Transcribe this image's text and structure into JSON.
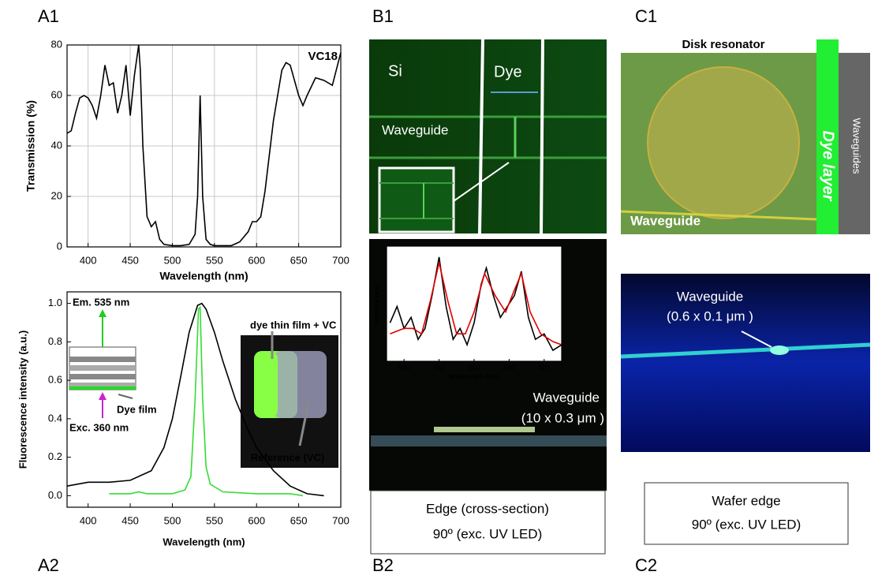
{
  "chart_data": [
    {
      "type": "line",
      "xlabel": "Wavelength (nm)",
      "ylabel": "Transmission (%)",
      "annotation": "VC18",
      "xlim": [
        375,
        700
      ],
      "xticks": [
        400,
        450,
        500,
        550,
        600,
        650,
        700
      ],
      "ylim": [
        0,
        80
      ],
      "yticks": [
        0,
        20,
        40,
        60,
        80
      ],
      "grid": true,
      "series": [
        {
          "color": "#000000",
          "x": [
            375,
            380,
            385,
            390,
            395,
            400,
            405,
            410,
            415,
            420,
            425,
            430,
            435,
            440,
            445,
            450,
            455,
            460,
            462,
            465,
            470,
            475,
            480,
            485,
            490,
            500,
            510,
            520,
            527,
            530,
            533,
            536,
            540,
            545,
            550,
            570,
            580,
            590,
            595,
            600,
            605,
            610,
            620,
            630,
            635,
            640,
            650,
            655,
            660,
            670,
            680,
            690,
            700
          ],
          "values": [
            45,
            46,
            53,
            59,
            60,
            59,
            56,
            51,
            60,
            72,
            64,
            65,
            53,
            60,
            72,
            52,
            68,
            80,
            70,
            40,
            12,
            8,
            10,
            3,
            1,
            0.5,
            0.5,
            1,
            5,
            20,
            60,
            20,
            3,
            1,
            0.5,
            0.5,
            2,
            6,
            10,
            10,
            12,
            22,
            50,
            70,
            73,
            72,
            60,
            56,
            60,
            67,
            66,
            64,
            77
          ]
        }
      ]
    },
    {
      "type": "line",
      "xlabel": "Wavelength (nm)",
      "ylabel": "Fluorescence intensity (a.u.)",
      "annotations": [
        "Em. 535 nm",
        "Dye film",
        "Exc. 360 nm",
        "dye thin film + VC",
        "Reference (VC)"
      ],
      "xlim": [
        375,
        700
      ],
      "xticks": [
        400,
        450,
        500,
        550,
        600,
        650,
        700
      ],
      "ylim": [
        -0.06,
        1.06
      ],
      "yticks": [
        {
          "value": 0,
          "label": "0.0"
        },
        0.2,
        0.4,
        0.6,
        0.8,
        {
          "value": 1,
          "label": "1.0"
        }
      ],
      "grid": false,
      "series": [
        {
          "color": "#000000",
          "x": [
            375,
            400,
            425,
            450,
            475,
            490,
            500,
            510,
            520,
            530,
            535,
            540,
            550,
            560,
            575,
            590,
            600,
            620,
            640,
            660,
            680
          ],
          "values": [
            0.05,
            0.07,
            0.07,
            0.08,
            0.13,
            0.25,
            0.4,
            0.62,
            0.85,
            0.99,
            1,
            0.97,
            0.85,
            0.7,
            0.5,
            0.34,
            0.25,
            0.13,
            0.05,
            0.01,
            0
          ]
        },
        {
          "color": "#33dd33",
          "x": [
            425,
            450,
            460,
            470,
            500,
            515,
            522,
            527,
            531,
            533,
            536,
            540,
            545,
            560,
            600,
            640,
            655
          ],
          "values": [
            0.01,
            0.01,
            0.02,
            0.01,
            0.01,
            0.03,
            0.1,
            0.5,
            0.97,
            0.98,
            0.5,
            0.15,
            0.06,
            0.02,
            0.01,
            0.01,
            0
          ]
        }
      ]
    },
    {
      "type": "line",
      "xlabel": "Wavelength (nm)",
      "ylabel": "Intensity (a.u.)",
      "xlim": [
        510,
        610
      ],
      "xticks": [
        520,
        540,
        560,
        580,
        600
      ],
      "ylim": [
        0,
        1.05
      ],
      "grid": false,
      "series": [
        {
          "color": "#000000",
          "x": [
            512,
            516,
            520,
            524,
            528,
            532,
            536,
            540,
            544,
            548,
            552,
            556,
            560,
            564,
            567,
            571,
            575,
            579,
            583,
            587,
            591,
            595,
            600,
            605,
            610
          ],
          "values": [
            0.35,
            0.5,
            0.3,
            0.4,
            0.2,
            0.3,
            0.6,
            0.95,
            0.5,
            0.2,
            0.3,
            0.15,
            0.35,
            0.7,
            0.85,
            0.6,
            0.4,
            0.5,
            0.6,
            0.82,
            0.4,
            0.2,
            0.25,
            0.1,
            0.15
          ]
        },
        {
          "color": "#e00000",
          "x": [
            512,
            520,
            525,
            530,
            535,
            540,
            545,
            550,
            555,
            560,
            566,
            572,
            578,
            583,
            587,
            592,
            598,
            605,
            610
          ],
          "values": [
            0.25,
            0.3,
            0.3,
            0.25,
            0.55,
            0.9,
            0.55,
            0.25,
            0.25,
            0.45,
            0.8,
            0.6,
            0.45,
            0.65,
            0.8,
            0.45,
            0.25,
            0.18,
            0.15
          ]
        }
      ]
    }
  ],
  "panels": {
    "labels": [
      "A1",
      "A2",
      "B1",
      "B2",
      "C1",
      "C2"
    ]
  },
  "b1": {
    "si": "Si",
    "dye": "Dye",
    "waveguide": "Waveguide"
  },
  "b2": {
    "waveguide": "Waveguide",
    "size": "(10 x 0.3 μm )",
    "caption": [
      "Edge (cross-section)",
      "90º (exc. UV LED)"
    ]
  },
  "c1": {
    "title": "Disk resonator",
    "dye_layer": "Dye layer",
    "waveguides": "Waveguides",
    "waveguide": "Waveguide"
  },
  "c2": {
    "waveguide": "Waveguide",
    "size": "(0.6 x 0.1 μm )",
    "caption": [
      "Wafer edge",
      "90º (exc. UV LED)"
    ]
  }
}
